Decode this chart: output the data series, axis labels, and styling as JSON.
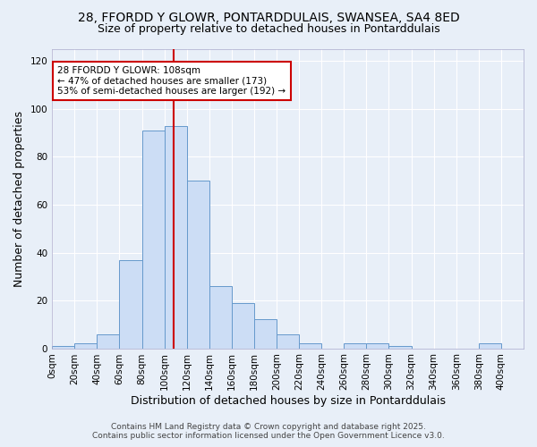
{
  "title_line1": "28, FFORDD Y GLOWR, PONTARDDULAIS, SWANSEA, SA4 8ED",
  "title_line2": "Size of property relative to detached houses in Pontarddulais",
  "xlabel": "Distribution of detached houses by size in Pontarddulais",
  "ylabel": "Number of detached properties",
  "bin_edges": [
    0,
    20,
    40,
    60,
    80,
    100,
    120,
    140,
    160,
    180,
    200,
    220,
    240,
    260,
    280,
    300,
    320,
    340,
    360,
    380,
    400,
    420
  ],
  "bar_heights": [
    1,
    2,
    6,
    37,
    91,
    93,
    70,
    26,
    19,
    12,
    6,
    2,
    0,
    2,
    2,
    1,
    0,
    0,
    0,
    2,
    0
  ],
  "bar_color": "#ccddf5",
  "bar_edge_color": "#6699cc",
  "property_size": 108,
  "red_line_color": "#cc0000",
  "annotation_text": "28 FFORDD Y GLOWR: 108sqm\n← 47% of detached houses are smaller (173)\n53% of semi-detached houses are larger (192) →",
  "annotation_box_edge_color": "#cc0000",
  "annotation_box_face_color": "#ffffff",
  "ylim": [
    0,
    125
  ],
  "yticks": [
    0,
    20,
    40,
    60,
    80,
    100,
    120
  ],
  "xlim": [
    0,
    420
  ],
  "footer_line1": "Contains HM Land Registry data © Crown copyright and database right 2025.",
  "footer_line2": "Contains public sector information licensed under the Open Government Licence v3.0.",
  "background_color": "#e8eff8",
  "grid_color": "#ffffff",
  "title_fontsize": 10,
  "subtitle_fontsize": 9,
  "axis_label_fontsize": 9,
  "tick_label_fontsize": 7.5,
  "annotation_fontsize": 7.5,
  "footer_fontsize": 6.5
}
